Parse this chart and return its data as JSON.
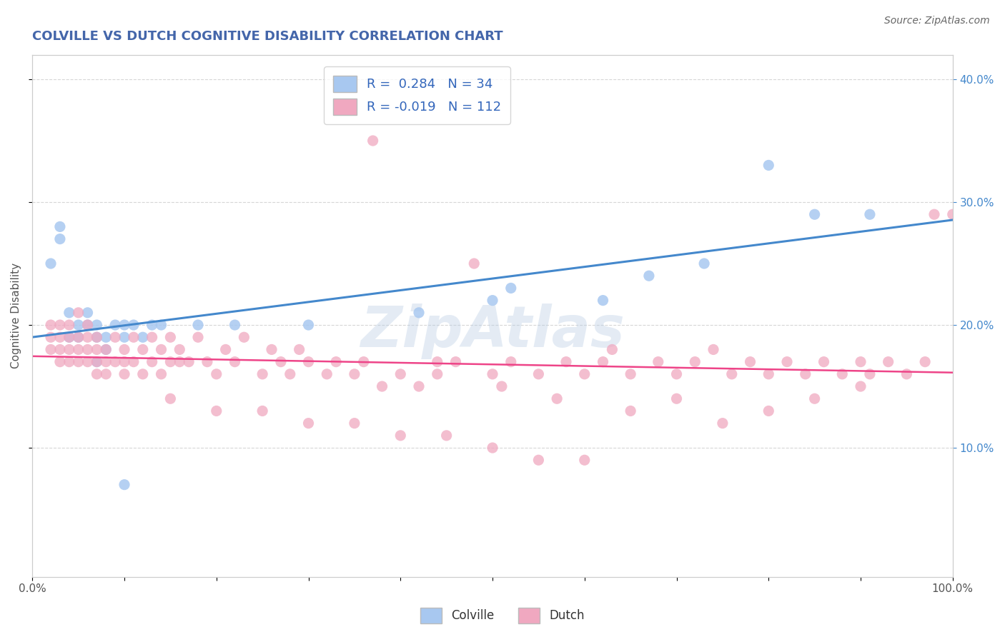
{
  "title": "COLVILLE VS DUTCH COGNITIVE DISABILITY CORRELATION CHART",
  "source": "Source: ZipAtlas.com",
  "ylabel": "Cognitive Disability",
  "xlim": [
    0.0,
    1.0
  ],
  "ylim": [
    -0.005,
    0.42
  ],
  "yticks": [
    0.1,
    0.2,
    0.3,
    0.4
  ],
  "ytick_labels": [
    "10.0%",
    "20.0%",
    "30.0%",
    "40.0%"
  ],
  "xticks": [
    0.0,
    0.1,
    0.2,
    0.3,
    0.4,
    0.5,
    0.6,
    0.7,
    0.8,
    0.9,
    1.0
  ],
  "xtick_labels": [
    "0.0%",
    "",
    "",
    "",
    "",
    "",
    "",
    "",
    "",
    "",
    "100.0%"
  ],
  "colville_color": "#a8c8f0",
  "dutch_color": "#f0a8c0",
  "colville_line_color": "#4488cc",
  "dutch_line_color": "#ee4488",
  "R_colville": 0.284,
  "N_colville": 34,
  "R_dutch": -0.019,
  "N_dutch": 112,
  "background_color": "#ffffff",
  "grid_color": "#cccccc",
  "watermark": "ZipAtlas",
  "title_color": "#4466aa",
  "legend_r_color": "#3366bb",
  "colville_x": [
    0.02,
    0.03,
    0.03,
    0.04,
    0.04,
    0.05,
    0.05,
    0.06,
    0.06,
    0.07,
    0.07,
    0.08,
    0.08,
    0.09,
    0.1,
    0.1,
    0.11,
    0.12,
    0.13,
    0.14,
    0.18,
    0.22,
    0.3,
    0.42,
    0.5,
    0.52,
    0.62,
    0.67,
    0.73,
    0.8,
    0.85,
    0.91,
    0.07,
    0.1
  ],
  "colville_y": [
    0.25,
    0.27,
    0.28,
    0.21,
    0.19,
    0.2,
    0.19,
    0.2,
    0.21,
    0.19,
    0.2,
    0.19,
    0.18,
    0.2,
    0.19,
    0.2,
    0.2,
    0.19,
    0.2,
    0.2,
    0.2,
    0.2,
    0.2,
    0.21,
    0.22,
    0.23,
    0.22,
    0.24,
    0.25,
    0.33,
    0.29,
    0.29,
    0.17,
    0.07
  ],
  "dutch_x": [
    0.02,
    0.02,
    0.02,
    0.03,
    0.03,
    0.03,
    0.03,
    0.04,
    0.04,
    0.04,
    0.04,
    0.05,
    0.05,
    0.05,
    0.05,
    0.06,
    0.06,
    0.06,
    0.06,
    0.07,
    0.07,
    0.07,
    0.07,
    0.08,
    0.08,
    0.08,
    0.09,
    0.09,
    0.1,
    0.1,
    0.1,
    0.11,
    0.11,
    0.12,
    0.12,
    0.13,
    0.13,
    0.14,
    0.14,
    0.15,
    0.15,
    0.16,
    0.16,
    0.17,
    0.18,
    0.19,
    0.2,
    0.21,
    0.22,
    0.23,
    0.25,
    0.26,
    0.27,
    0.28,
    0.29,
    0.3,
    0.32,
    0.33,
    0.35,
    0.36,
    0.37,
    0.38,
    0.4,
    0.42,
    0.44,
    0.44,
    0.46,
    0.48,
    0.5,
    0.51,
    0.52,
    0.55,
    0.57,
    0.58,
    0.6,
    0.62,
    0.63,
    0.65,
    0.68,
    0.7,
    0.72,
    0.74,
    0.76,
    0.78,
    0.8,
    0.82,
    0.84,
    0.86,
    0.88,
    0.9,
    0.91,
    0.93,
    0.95,
    0.97,
    0.98,
    1.0,
    0.15,
    0.2,
    0.25,
    0.3,
    0.35,
    0.4,
    0.45,
    0.5,
    0.55,
    0.6,
    0.65,
    0.7,
    0.75,
    0.8,
    0.85,
    0.9
  ],
  "dutch_y": [
    0.18,
    0.19,
    0.2,
    0.17,
    0.18,
    0.19,
    0.2,
    0.17,
    0.18,
    0.19,
    0.2,
    0.17,
    0.18,
    0.19,
    0.21,
    0.17,
    0.18,
    0.19,
    0.2,
    0.16,
    0.17,
    0.18,
    0.19,
    0.16,
    0.17,
    0.18,
    0.17,
    0.19,
    0.16,
    0.17,
    0.18,
    0.17,
    0.19,
    0.16,
    0.18,
    0.17,
    0.19,
    0.16,
    0.18,
    0.17,
    0.19,
    0.17,
    0.18,
    0.17,
    0.19,
    0.17,
    0.16,
    0.18,
    0.17,
    0.19,
    0.16,
    0.18,
    0.17,
    0.16,
    0.18,
    0.17,
    0.16,
    0.17,
    0.16,
    0.17,
    0.35,
    0.15,
    0.16,
    0.15,
    0.17,
    0.16,
    0.17,
    0.25,
    0.16,
    0.15,
    0.17,
    0.16,
    0.14,
    0.17,
    0.16,
    0.17,
    0.18,
    0.16,
    0.17,
    0.16,
    0.17,
    0.18,
    0.16,
    0.17,
    0.16,
    0.17,
    0.16,
    0.17,
    0.16,
    0.17,
    0.16,
    0.17,
    0.16,
    0.17,
    0.29,
    0.29,
    0.14,
    0.13,
    0.13,
    0.12,
    0.12,
    0.11,
    0.11,
    0.1,
    0.09,
    0.09,
    0.13,
    0.14,
    0.12,
    0.13,
    0.14,
    0.15
  ]
}
